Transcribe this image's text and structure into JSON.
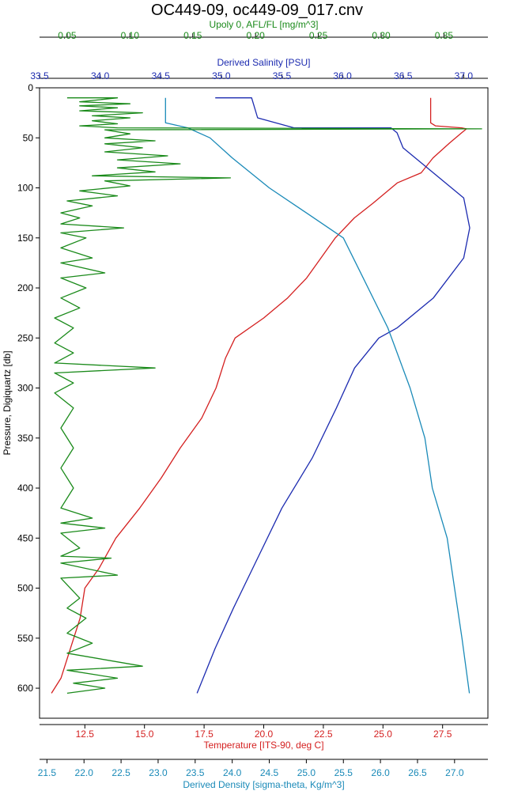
{
  "chart_data": {
    "type": "line",
    "title": "OC449-09, oc449-09_017.cnv",
    "y_axis": {
      "label": "Pressure, Digiquartz [db]",
      "range": [
        0,
        630
      ],
      "inverted": true,
      "ticks": [
        "0",
        "50",
        "100",
        "150",
        "200",
        "250",
        "300",
        "350",
        "400",
        "450",
        "500",
        "550",
        "600"
      ]
    },
    "x_axes": [
      {
        "id": "fluor",
        "label": "Upoly 0, AFL/FL [mg/m^3]",
        "position": "top-outer",
        "color": "#1a8a1a",
        "range": [
          0.028,
          0.385
        ],
        "ticks": [
          "0.05",
          "0.10",
          "0.15",
          "0.20",
          "0.25",
          "0.30",
          "0.35"
        ]
      },
      {
        "id": "salinity",
        "label": "Derived Salinity [PSU]",
        "position": "top-inner",
        "color": "#1c2bb0",
        "range": [
          33.5,
          37.2
        ],
        "ticks": [
          "33.5",
          "34.0",
          "34.5",
          "35.0",
          "35.5",
          "36.0",
          "36.5",
          "37.0"
        ]
      },
      {
        "id": "temperature",
        "label": "Temperature [ITS-90, deg C]",
        "position": "bottom-inner",
        "color": "#d42020",
        "range": [
          10.6,
          29.4
        ],
        "ticks": [
          "12.5",
          "15.0",
          "17.5",
          "20.0",
          "22.5",
          "25.0",
          "27.5"
        ]
      },
      {
        "id": "density",
        "label": "Derived Density [sigma-theta, Kg/m^3]",
        "position": "bottom-outer",
        "color": "#1a8ab8",
        "range": [
          21.4,
          27.45
        ],
        "ticks": [
          "21.5",
          "22.0",
          "22.5",
          "23.0",
          "23.5",
          "24.0",
          "24.5",
          "25.0",
          "25.5",
          "26.0",
          "26.5",
          "27.0"
        ]
      }
    ],
    "series": [
      {
        "axis": "temperature",
        "color": "#d42020",
        "points": [
          [
            27.0,
            10
          ],
          [
            27.0,
            35
          ],
          [
            27.2,
            38
          ],
          [
            28.3,
            40
          ],
          [
            28.5,
            41
          ],
          [
            28.3,
            45
          ],
          [
            27.8,
            55
          ],
          [
            27.1,
            70
          ],
          [
            26.6,
            85
          ],
          [
            25.6,
            95
          ],
          [
            24.6,
            115
          ],
          [
            23.8,
            130
          ],
          [
            23.0,
            150
          ],
          [
            22.4,
            170
          ],
          [
            21.8,
            190
          ],
          [
            21.0,
            210
          ],
          [
            20.0,
            230
          ],
          [
            18.8,
            250
          ],
          [
            18.4,
            270
          ],
          [
            18.0,
            300
          ],
          [
            17.4,
            330
          ],
          [
            16.5,
            360
          ],
          [
            15.7,
            390
          ],
          [
            14.8,
            420
          ],
          [
            13.8,
            450
          ],
          [
            13.1,
            480
          ],
          [
            12.5,
            500
          ],
          [
            12.3,
            530
          ],
          [
            11.9,
            560
          ],
          [
            11.5,
            590
          ],
          [
            11.1,
            605
          ]
        ]
      },
      {
        "axis": "salinity",
        "color": "#1c2bb0",
        "points": [
          [
            34.95,
            10
          ],
          [
            35.25,
            10
          ],
          [
            35.3,
            30
          ],
          [
            35.6,
            40
          ],
          [
            36.4,
            40
          ],
          [
            36.45,
            45
          ],
          [
            36.5,
            60
          ],
          [
            36.65,
            75
          ],
          [
            36.8,
            90
          ],
          [
            37.0,
            110
          ],
          [
            37.05,
            140
          ],
          [
            37.0,
            170
          ],
          [
            36.75,
            210
          ],
          [
            36.45,
            240
          ],
          [
            36.3,
            250
          ],
          [
            36.1,
            280
          ],
          [
            35.95,
            320
          ],
          [
            35.75,
            370
          ],
          [
            35.5,
            420
          ],
          [
            35.3,
            470
          ],
          [
            35.1,
            520
          ],
          [
            34.95,
            560
          ],
          [
            34.85,
            590
          ],
          [
            34.8,
            605
          ]
        ]
      },
      {
        "axis": "density",
        "color": "#1a8ab8",
        "points": [
          [
            23.1,
            10
          ],
          [
            23.1,
            35
          ],
          [
            23.4,
            40
          ],
          [
            23.7,
            50
          ],
          [
            24.0,
            70
          ],
          [
            24.5,
            100
          ],
          [
            25.0,
            125
          ],
          [
            25.5,
            150
          ],
          [
            25.7,
            180
          ],
          [
            26.1,
            240
          ],
          [
            26.2,
            260
          ],
          [
            26.4,
            300
          ],
          [
            26.6,
            350
          ],
          [
            26.7,
            400
          ],
          [
            26.9,
            450
          ],
          [
            27.0,
            500
          ],
          [
            27.1,
            550
          ],
          [
            27.2,
            605
          ]
        ]
      },
      {
        "axis": "fluor",
        "color": "#1a8a1a",
        "points": [
          [
            0.05,
            10
          ],
          [
            0.09,
            10
          ],
          [
            0.06,
            14
          ],
          [
            0.1,
            16
          ],
          [
            0.06,
            18
          ],
          [
            0.09,
            20
          ],
          [
            0.06,
            23
          ],
          [
            0.11,
            25
          ],
          [
            0.07,
            28
          ],
          [
            0.1,
            30
          ],
          [
            0.07,
            33
          ],
          [
            0.09,
            36
          ],
          [
            0.06,
            38
          ],
          [
            0.09,
            40
          ],
          [
            0.38,
            41
          ],
          [
            0.08,
            42
          ],
          [
            0.1,
            46
          ],
          [
            0.08,
            50
          ],
          [
            0.12,
            53
          ],
          [
            0.08,
            56
          ],
          [
            0.11,
            60
          ],
          [
            0.08,
            64
          ],
          [
            0.13,
            68
          ],
          [
            0.09,
            72
          ],
          [
            0.14,
            76
          ],
          [
            0.09,
            80
          ],
          [
            0.12,
            84
          ],
          [
            0.07,
            88
          ],
          [
            0.18,
            90
          ],
          [
            0.08,
            93
          ],
          [
            0.1,
            98
          ],
          [
            0.06,
            103
          ],
          [
            0.09,
            108
          ],
          [
            0.05,
            113
          ],
          [
            0.07,
            118
          ],
          [
            0.045,
            125
          ],
          [
            0.06,
            130
          ],
          [
            0.045,
            136
          ],
          [
            0.095,
            140
          ],
          [
            0.045,
            145
          ],
          [
            0.065,
            150
          ],
          [
            0.045,
            160
          ],
          [
            0.07,
            170
          ],
          [
            0.045,
            175
          ],
          [
            0.08,
            185
          ],
          [
            0.045,
            190
          ],
          [
            0.065,
            200
          ],
          [
            0.045,
            210
          ],
          [
            0.06,
            220
          ],
          [
            0.04,
            230
          ],
          [
            0.055,
            240
          ],
          [
            0.04,
            255
          ],
          [
            0.055,
            265
          ],
          [
            0.04,
            275
          ],
          [
            0.12,
            280
          ],
          [
            0.04,
            285
          ],
          [
            0.055,
            295
          ],
          [
            0.04,
            305
          ],
          [
            0.055,
            320
          ],
          [
            0.045,
            340
          ],
          [
            0.055,
            360
          ],
          [
            0.045,
            380
          ],
          [
            0.055,
            400
          ],
          [
            0.045,
            420
          ],
          [
            0.07,
            430
          ],
          [
            0.045,
            435
          ],
          [
            0.08,
            440
          ],
          [
            0.045,
            445
          ],
          [
            0.06,
            460
          ],
          [
            0.045,
            468
          ],
          [
            0.085,
            470
          ],
          [
            0.045,
            475
          ],
          [
            0.09,
            487
          ],
          [
            0.045,
            490
          ],
          [
            0.06,
            510
          ],
          [
            0.05,
            520
          ],
          [
            0.065,
            530
          ],
          [
            0.05,
            545
          ],
          [
            0.07,
            555
          ],
          [
            0.05,
            565
          ],
          [
            0.11,
            578
          ],
          [
            0.05,
            582
          ],
          [
            0.09,
            590
          ],
          [
            0.055,
            595
          ],
          [
            0.08,
            600
          ],
          [
            0.05,
            605
          ]
        ]
      }
    ]
  }
}
